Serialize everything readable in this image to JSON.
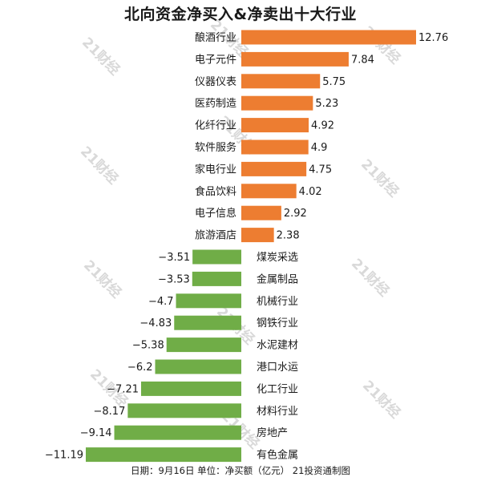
{
  "chart_data": {
    "type": "bar",
    "orientation": "horizontal",
    "title": "北向资金净买入&净卖出十大行业",
    "categories": [
      "酿酒行业",
      "电子元件",
      "仪器仪表",
      "医药制造",
      "化纤行业",
      "软件服务",
      "家电行业",
      "食品饮料",
      "电子信息",
      "旅游酒店",
      "煤炭采选",
      "金属制品",
      "机械行业",
      "钢铁行业",
      "水泥建材",
      "港口水运",
      "化工行业",
      "材料行业",
      "房地产",
      "有色金属"
    ],
    "values": [
      12.76,
      7.84,
      5.75,
      5.23,
      4.92,
      4.9,
      4.75,
      4.02,
      2.92,
      2.38,
      -3.51,
      -3.53,
      -4.7,
      -4.83,
      -5.38,
      -6.2,
      -7.21,
      -8.17,
      -9.14,
      -11.19
    ],
    "value_labels": [
      "12.76",
      "7.84",
      "5.75",
      "5.23",
      "4.92",
      "4.9",
      "4.75",
      "4.02",
      "2.92",
      "2.38",
      "−3.51",
      "−3.53",
      "−4.7",
      "−4.83",
      "−5.38",
      "−6.2",
      "−7.21",
      "−8.17",
      "−9.14",
      "−11.19"
    ],
    "xlim": [
      -11.19,
      12.76
    ],
    "grid": false,
    "legend": "none",
    "colors": {
      "positive": "#ed7d31",
      "negative": "#70ad47"
    },
    "footnote": "日期：9月16日 单位：净买额（亿元） 21投资通制图",
    "watermark": "21财经"
  }
}
